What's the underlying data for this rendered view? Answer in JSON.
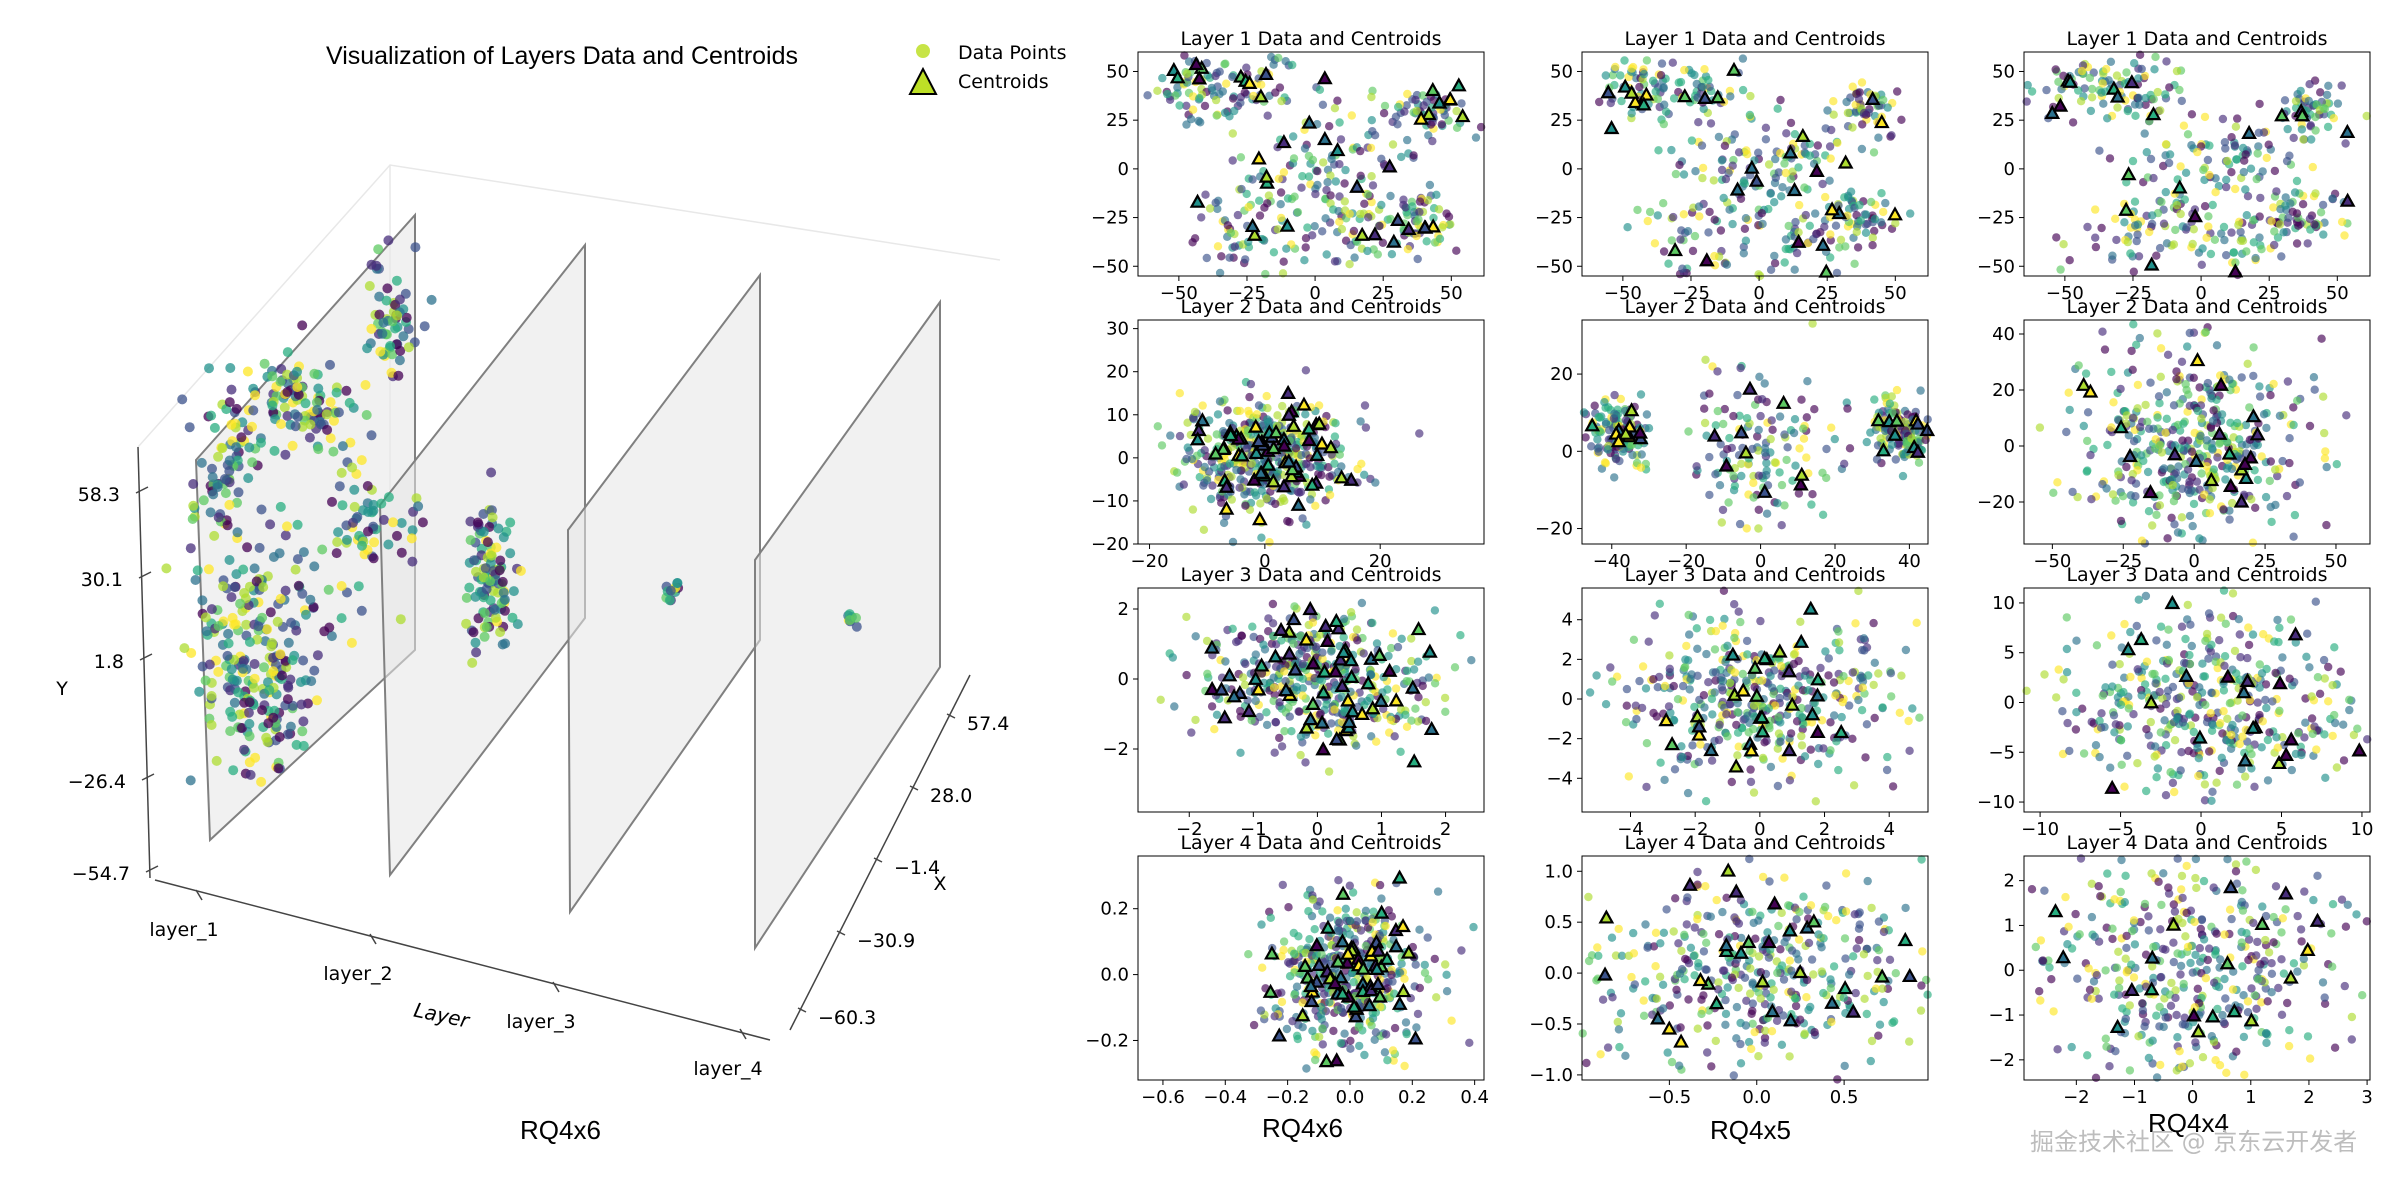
{
  "captions": {
    "left": "RQ4x6",
    "col1": "RQ4x6",
    "col2": "RQ4x5",
    "col3": "RQ4x4"
  },
  "watermark": "掘金技术社区 @ 京东云开发者",
  "colors": {
    "centroid_edge": "#000000",
    "plane_fill": "#e6e6e6",
    "plane_edge": "#808080",
    "viridis": [
      "#440154",
      "#472d7b",
      "#3b528b",
      "#2c728e",
      "#21918c",
      "#28ae80",
      "#5ec962",
      "#addc30",
      "#fde725"
    ],
    "legend_dot": "#bddf26"
  },
  "chart_data": [
    {
      "type": "scatter3d",
      "title": "Visualization of Layers Data and Centroids",
      "ylabel": "Y",
      "xlabel": "X",
      "zlabel": "Layer",
      "layers": [
        "layer_1",
        "layer_2",
        "layer_3",
        "layer_4"
      ],
      "y_ticks": [
        "58.3",
        "30.1",
        "1.8",
        "−26.4",
        "−54.7"
      ],
      "x_ticks": [
        "57.4",
        "28.0",
        "−1.4",
        "−30.9",
        "−60.3"
      ],
      "legend": [
        "Data Points",
        "Centroids"
      ]
    },
    {
      "type": "scatter",
      "title": "Layer 1 Data and Centroids",
      "col": 0,
      "row": 0,
      "xlim": [
        -65,
        62
      ],
      "ylim": [
        -55,
        60
      ],
      "xticks": [
        -50,
        -25,
        0,
        25,
        50
      ],
      "yticks": [
        -50,
        -25,
        0,
        25,
        50
      ],
      "clusters": [
        [
          -45,
          42,
          8
        ],
        [
          -22,
          40,
          9
        ],
        [
          40,
          30,
          7
        ],
        [
          -10,
          -5,
          12
        ],
        [
          15,
          8,
          12
        ],
        [
          -25,
          -35,
          12
        ],
        [
          15,
          -35,
          12
        ],
        [
          38,
          -25,
          7
        ]
      ],
      "centroids": 40
    },
    {
      "type": "scatter",
      "title": "Layer 1 Data and Centroids",
      "col": 1,
      "row": 0,
      "xlim": [
        -65,
        62
      ],
      "ylim": [
        -55,
        60
      ],
      "xticks": [
        -50,
        -25,
        0,
        25,
        50
      ],
      "yticks": [
        -50,
        -25,
        0,
        25,
        50
      ],
      "clusters": [
        [
          -45,
          42,
          8
        ],
        [
          -22,
          40,
          9
        ],
        [
          40,
          30,
          7
        ],
        [
          -10,
          -5,
          12
        ],
        [
          15,
          8,
          12
        ],
        [
          -25,
          -35,
          12
        ],
        [
          15,
          -35,
          12
        ],
        [
          38,
          -25,
          7
        ]
      ],
      "centroids": 30
    },
    {
      "type": "scatter",
      "title": "Layer 1 Data and Centroids",
      "col": 2,
      "row": 0,
      "xlim": [
        -65,
        62
      ],
      "ylim": [
        -55,
        60
      ],
      "xticks": [
        -50,
        -25,
        0,
        25,
        50
      ],
      "yticks": [
        -50,
        -25,
        0,
        25,
        50
      ],
      "clusters": [
        [
          -45,
          42,
          8
        ],
        [
          -22,
          40,
          9
        ],
        [
          40,
          30,
          7
        ],
        [
          -10,
          -5,
          12
        ],
        [
          15,
          8,
          12
        ],
        [
          -25,
          -35,
          12
        ],
        [
          15,
          -35,
          12
        ],
        [
          38,
          -25,
          7
        ]
      ],
      "centroids": 20
    },
    {
      "type": "scatter",
      "title": "Layer 2 Data and Centroids",
      "col": 0,
      "row": 1,
      "xlim": [
        -22,
        38
      ],
      "ylim": [
        -20,
        32
      ],
      "xticks": [
        -20,
        0,
        20
      ],
      "yticks": [
        -20,
        -10,
        0,
        10,
        20,
        30
      ],
      "clusters": [
        [
          0,
          0,
          7
        ]
      ],
      "centroids": 60
    },
    {
      "type": "scatter",
      "title": "Layer 2 Data and Centroids",
      "col": 1,
      "row": 1,
      "xlim": [
        -48,
        45
      ],
      "ylim": [
        -24,
        34
      ],
      "xticks": [
        -40,
        -20,
        0,
        20,
        40
      ],
      "yticks": [
        -20,
        0,
        20
      ],
      "clusters": [
        [
          0,
          0,
          10
        ],
        [
          -38,
          5,
          4
        ],
        [
          38,
          5,
          4
        ]
      ],
      "centroids": 30
    },
    {
      "type": "scatter",
      "title": "Layer 2 Data and Centroids",
      "col": 2,
      "row": 1,
      "xlim": [
        -60,
        62
      ],
      "ylim": [
        -35,
        45
      ],
      "xticks": [
        -50,
        -25,
        0,
        25,
        50
      ],
      "yticks": [
        -20,
        0,
        20,
        40
      ],
      "clusters": [
        [
          0,
          0,
          18
        ]
      ],
      "centroids": 20
    },
    {
      "type": "scatter",
      "title": "Layer 3 Data and Centroids",
      "col": 0,
      "row": 2,
      "xlim": [
        -2.8,
        2.6
      ],
      "ylim": [
        -3.8,
        2.6
      ],
      "xticks": [
        -2,
        -1,
        0,
        1,
        2
      ],
      "yticks": [
        -2,
        0,
        2
      ],
      "clusters": [
        [
          0,
          0,
          0.9
        ]
      ],
      "centroids": 60
    },
    {
      "type": "scatter",
      "title": "Layer 3 Data and Centroids",
      "col": 1,
      "row": 2,
      "xlim": [
        -5.5,
        5.2
      ],
      "ylim": [
        -5.7,
        5.6
      ],
      "xticks": [
        -4,
        -2,
        0,
        2,
        4
      ],
      "yticks": [
        -4,
        -2,
        0,
        2,
        4
      ],
      "clusters": [
        [
          0,
          0,
          2.2
        ]
      ],
      "centroids": 30
    },
    {
      "type": "scatter",
      "title": "Layer 3 Data and Centroids",
      "col": 2,
      "row": 2,
      "xlim": [
        -11,
        10.5
      ],
      "ylim": [
        -11,
        11.5
      ],
      "xticks": [
        -10,
        -5,
        0,
        5,
        10
      ],
      "yticks": [
        -10,
        -5,
        0,
        5,
        10
      ],
      "clusters": [
        [
          0,
          0,
          4.5
        ]
      ],
      "centroids": 20
    },
    {
      "type": "scatter",
      "title": "Layer 4 Data and Centroids",
      "col": 0,
      "row": 3,
      "xlim": [
        -0.68,
        0.43
      ],
      "ylim": [
        -0.32,
        0.36
      ],
      "xticks": [
        -0.6,
        -0.4,
        -0.2,
        0.0,
        0.2,
        0.4
      ],
      "yticks": [
        -0.2,
        0.0,
        0.2
      ],
      "clusters": [
        [
          0,
          0,
          0.12
        ]
      ],
      "centroids": 60
    },
    {
      "type": "scatter",
      "title": "Layer 4 Data and Centroids",
      "col": 1,
      "row": 3,
      "xlim": [
        -1.0,
        0.98
      ],
      "ylim": [
        -1.05,
        1.15
      ],
      "xticks": [
        -0.5,
        0.0,
        0.5
      ],
      "yticks": [
        -1.0,
        -0.5,
        0.0,
        0.5,
        1.0
      ],
      "clusters": [
        [
          0,
          0,
          0.5
        ]
      ],
      "centroids": 30
    },
    {
      "type": "scatter",
      "title": "Layer 4 Data and Centroids",
      "col": 2,
      "row": 3,
      "xlim": [
        -2.9,
        3.05
      ],
      "ylim": [
        -2.45,
        2.55
      ],
      "xticks": [
        -2,
        -1,
        0,
        1,
        2,
        3
      ],
      "yticks": [
        -2,
        -1,
        0,
        1,
        2
      ],
      "clusters": [
        [
          0,
          0,
          1.3
        ]
      ],
      "centroids": 20
    }
  ]
}
